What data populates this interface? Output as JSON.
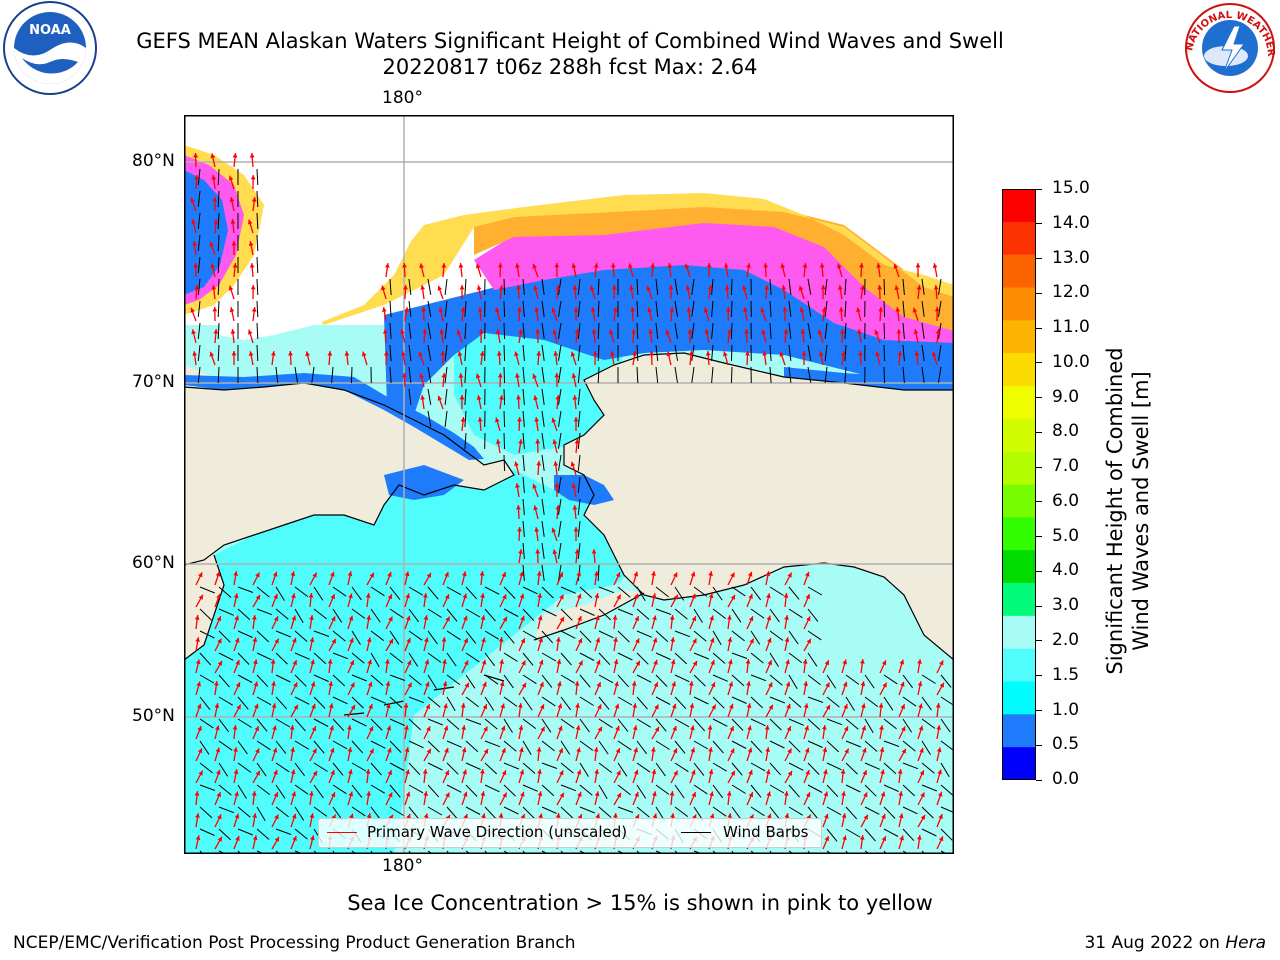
{
  "title": {
    "line1": "GEFS MEAN Alaskan Waters Significant Height of Combined Wind Waves and Swell",
    "line2": "20220817 t06z 288h fcst   Max: 2.64"
  },
  "map": {
    "lat_labels": [
      "80°N",
      "70°N",
      "60°N",
      "50°N"
    ],
    "lon_label_top": "180°",
    "lon_label_bottom": "180°",
    "colors": {
      "land": "#efecdc",
      "water_light": "#a8fcf6",
      "water_cyan": "#50fcfc",
      "water_aqua": "#00fcfc",
      "water_blue": "#1e7cfc",
      "water_darkblue": "#0000fc",
      "ice_pink": "#ff5af0",
      "ice_orange": "#ffb030",
      "ice_yellow": "#ffdc50",
      "coast": "#000000",
      "grid": "#b0b0b0",
      "wave_arrow": "#ff0000",
      "wind_barb": "#000000"
    }
  },
  "legend": {
    "wave_label": "Primary Wave Direction (unscaled)",
    "barb_label": "Wind Barbs"
  },
  "colorbar": {
    "label_line1": "Significant Height of Combined",
    "label_line2": "Wind Waves and Swell [m]",
    "ticks": [
      "15.0",
      "14.0",
      "13.0",
      "12.0",
      "11.0",
      "10.0",
      "9.0",
      "8.0",
      "7.0",
      "6.0",
      "5.0",
      "4.0",
      "3.0",
      "2.0",
      "1.5",
      "1.0",
      "0.5",
      "0.0"
    ],
    "colors_top_to_bottom": [
      "#fc0000",
      "#fc3200",
      "#fc6400",
      "#fc8c00",
      "#fcb400",
      "#fcdc00",
      "#f0fc00",
      "#d2fc00",
      "#b4fc00",
      "#78fc00",
      "#32fc00",
      "#00dc00",
      "#00fc78",
      "#a8fcf6",
      "#50fcfc",
      "#00fcfc",
      "#1e7cfc",
      "#0000fc"
    ]
  },
  "ice_note": "Sea Ice Concentration > 15% is shown in pink to yellow",
  "footer": {
    "left": "NCEP/EMC/Verification Post Processing Product Generation Branch",
    "right_prefix": "31 Aug 2022 on ",
    "right_host": "Hera"
  },
  "logos": {
    "noaa_text": "NOAA",
    "nws_text": "NATIONAL WEATHER SERVICE"
  }
}
